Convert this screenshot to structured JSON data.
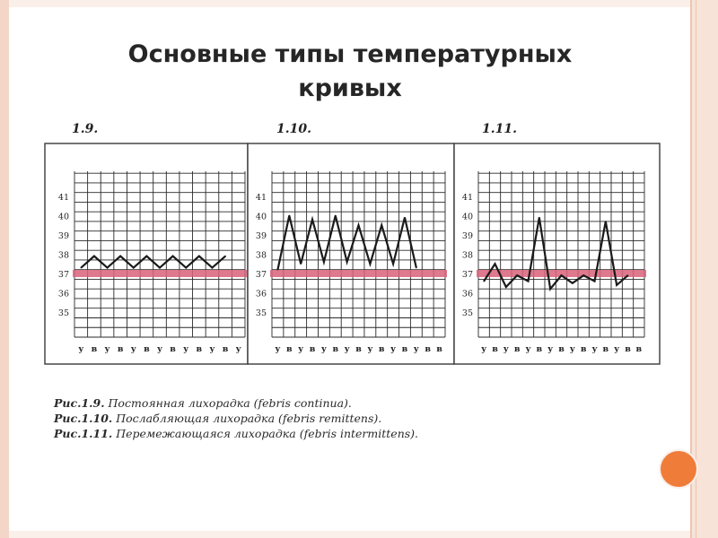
{
  "slide": {
    "title_line1": "Основные типы температурных",
    "title_line2": "кривых"
  },
  "captions": [
    "Рис.1.9. Постоянная лихорадка  (febris  continua).",
    "Рис.1.10. Послабляющая лихорадка (febris remittens).",
    "Рис.1.11. Перемежающаяся лихорадка (febris intermittens)."
  ],
  "colors": {
    "band": "#d9627a",
    "line": "#1a1a1a",
    "grid": "#2a2a2a",
    "accent_dot": "#f07c3a"
  },
  "chart_data": [
    {
      "type": "line",
      "label": "1.9.",
      "ylim": [
        35,
        41
      ],
      "yticks": [
        35,
        36,
        37,
        38,
        39,
        40,
        41
      ],
      "x_labels": [
        "у",
        "в",
        "у",
        "в",
        "у",
        "в",
        "у",
        "в",
        "у",
        "в",
        "у",
        "в",
        "у"
      ],
      "normal_band": 37,
      "values": [
        37.3,
        37.9,
        37.3,
        37.9,
        37.3,
        37.9,
        37.3,
        37.9,
        37.3,
        37.9,
        37.3,
        37.9
      ],
      "grid": true
    },
    {
      "type": "line",
      "label": "1.10.",
      "ylim": [
        35,
        41
      ],
      "yticks": [
        35,
        36,
        37,
        38,
        39,
        40,
        41
      ],
      "x_labels": [
        "у",
        "в",
        "у",
        "в",
        "у",
        "в",
        "у",
        "в",
        "у",
        "в",
        "у",
        "в",
        "у",
        "в",
        "в"
      ],
      "normal_band": 37,
      "values": [
        37.2,
        40.0,
        37.5,
        39.8,
        37.6,
        40.0,
        37.6,
        39.5,
        37.5,
        39.5,
        37.5,
        39.9,
        37.3
      ],
      "grid": true
    },
    {
      "type": "line",
      "label": "1.11.",
      "ylim": [
        35,
        41
      ],
      "yticks": [
        35,
        36,
        37,
        38,
        39,
        40,
        41
      ],
      "x_labels": [
        "у",
        "в",
        "у",
        "в",
        "у",
        "в",
        "у",
        "в",
        "у",
        "в",
        "у",
        "в",
        "у",
        "в",
        "в"
      ],
      "normal_band": 37,
      "values": [
        36.6,
        37.5,
        36.3,
        36.9,
        36.6,
        39.9,
        36.2,
        36.9,
        36.5,
        36.9,
        36.6,
        39.7,
        36.4,
        36.9
      ],
      "grid": true
    }
  ]
}
